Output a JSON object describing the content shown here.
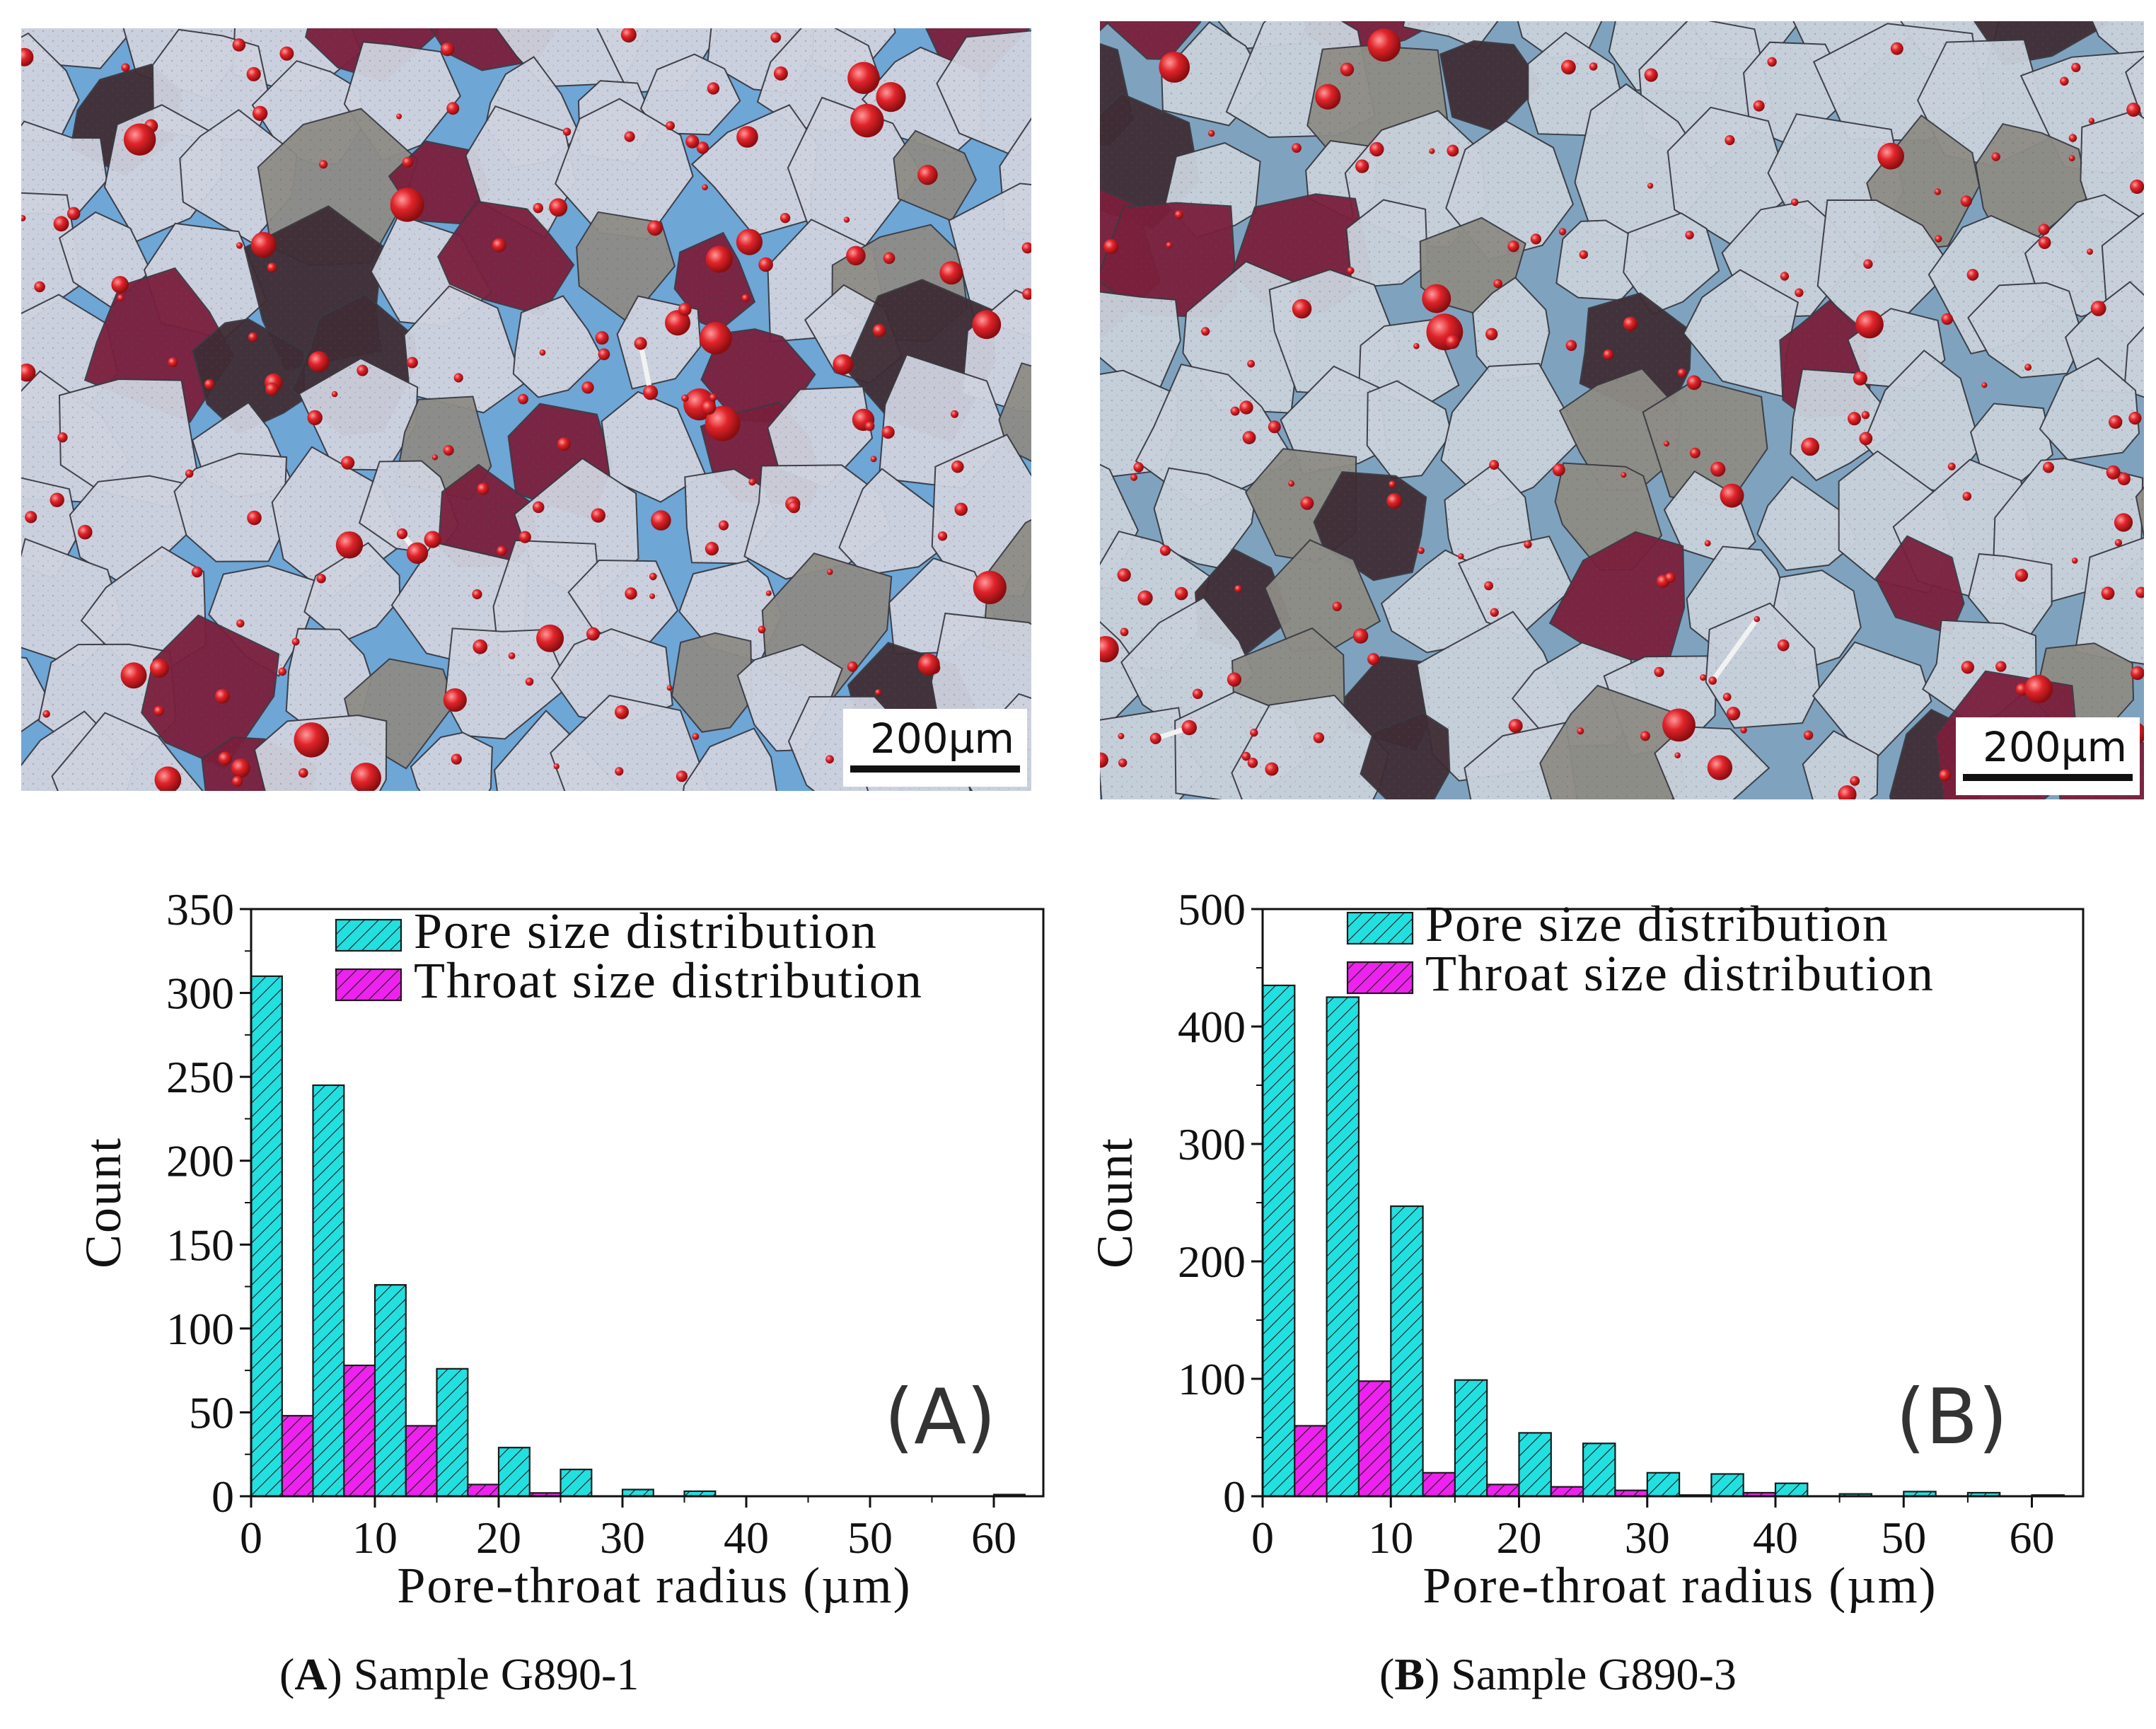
{
  "micrographs": [
    {
      "id": "A",
      "scale_bar": "200µm",
      "colors": {
        "grain": "#cfd3df",
        "pore": "#6ea6d6",
        "stain": "#7a1f3c",
        "sphere": "#e0242a",
        "throat": "#f2f2f2"
      }
    },
    {
      "id": "B",
      "scale_bar": "200µm",
      "colors": {
        "grain": "#c9d2dc",
        "pore": "#7fa3bf",
        "stain": "#7a1f3c",
        "sphere": "#e0242a",
        "throat": "#f2f2f2"
      }
    }
  ],
  "chart_data": [
    {
      "type": "bar",
      "panel_label": "(A)",
      "xlabel": "Pore-throat radius (µm)",
      "ylabel": "Count",
      "xlim": [
        0,
        64
      ],
      "ylim": [
        0,
        350
      ],
      "xticks": [
        0,
        10,
        20,
        30,
        40,
        50,
        60
      ],
      "yticks": [
        0,
        50,
        100,
        150,
        200,
        250,
        300,
        350
      ],
      "bin_width": 5,
      "bin_starts": [
        0,
        5,
        10,
        15,
        20,
        25,
        30,
        35,
        40,
        45,
        50,
        55,
        60
      ],
      "legend_position": "top-right",
      "grid": false,
      "series": [
        {
          "name": "Pore size distribution",
          "color": "#22e0e0",
          "hatch": "diagonal",
          "values": [
            310,
            245,
            126,
            76,
            29,
            16,
            4,
            3,
            0,
            0,
            0,
            0,
            1
          ]
        },
        {
          "name": "Throat size distribution",
          "color": "#ee22ee",
          "hatch": "diagonal",
          "values": [
            48,
            78,
            42,
            7,
            2,
            0,
            0,
            0,
            0,
            0,
            0,
            0,
            0
          ]
        }
      ],
      "caption": {
        "letter": "A",
        "text": " Sample G890-1"
      }
    },
    {
      "type": "bar",
      "panel_label": "(B)",
      "xlabel": "Pore-throat radius (µm)",
      "ylabel": "Count",
      "xlim": [
        0,
        64
      ],
      "ylim": [
        0,
        500
      ],
      "xticks": [
        0,
        10,
        20,
        30,
        40,
        50,
        60
      ],
      "yticks": [
        0,
        100,
        200,
        300,
        400,
        500
      ],
      "bin_width": 5,
      "bin_starts": [
        0,
        5,
        10,
        15,
        20,
        25,
        30,
        35,
        40,
        45,
        50,
        55,
        60
      ],
      "legend_position": "top-right",
      "grid": false,
      "series": [
        {
          "name": "Pore size distribution",
          "color": "#22e0e0",
          "hatch": "diagonal",
          "values": [
            435,
            425,
            247,
            99,
            54,
            45,
            20,
            19,
            11,
            2,
            4,
            3,
            1
          ]
        },
        {
          "name": "Throat size distribution",
          "color": "#ee22ee",
          "hatch": "diagonal",
          "values": [
            60,
            98,
            20,
            10,
            8,
            5,
            1,
            3,
            0,
            0,
            0,
            0,
            0
          ]
        }
      ],
      "caption": {
        "letter": "B",
        "text": " Sample G890-3"
      }
    }
  ]
}
